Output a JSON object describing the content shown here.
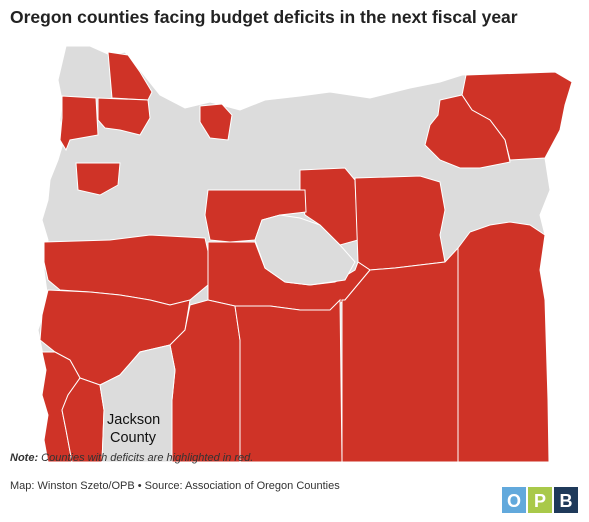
{
  "title": "Oregon counties facing budget deficits in the next fiscal year",
  "map_label": {
    "line1": "Jackson",
    "line2": "County"
  },
  "note": {
    "label": "Note:",
    "text": " Counties with deficits are highlighted in red."
  },
  "credit": "Map: Winston Szeto/OPB • Source: Association of Oregon Counties",
  "logo": {
    "letters": [
      "O",
      "P",
      "B"
    ],
    "colors": [
      "#62a9dc",
      "#a9c94a",
      "#1f3a5a"
    ]
  },
  "colors": {
    "deficit": "#cf3327",
    "no_deficit": "#dcdcdc",
    "border": "#ffffff"
  },
  "legend_meaning": "red = county with deficit"
}
